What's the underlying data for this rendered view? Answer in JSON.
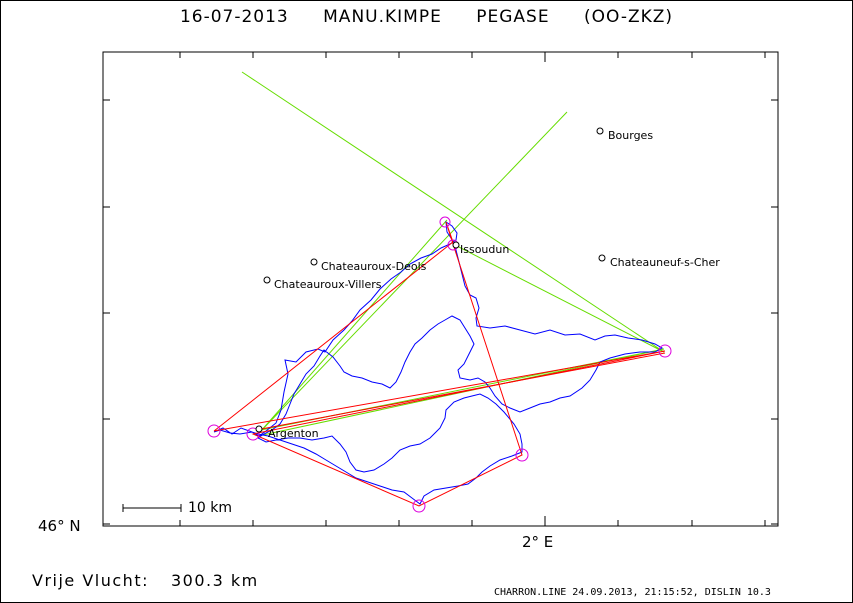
{
  "header": {
    "date": "16-07-2013",
    "pilot": "MANU.KIMPE",
    "glider": "PEGASE (OO-ZKZ)"
  },
  "axes": {
    "lat_label": "46° N",
    "lon_label": "2° E"
  },
  "scale": {
    "label": "10 km"
  },
  "places": [
    {
      "name": "Bourges"
    },
    {
      "name": "Issoudun"
    },
    {
      "name": "Chateauroux-Deols"
    },
    {
      "name": "Chateauroux-Villers"
    },
    {
      "name": "Chateauneuf-s-Cher"
    },
    {
      "name": "Argenton"
    }
  ],
  "summary": {
    "label": "Vrije Vlucht:",
    "distance": "300.3 km"
  },
  "footer": {
    "text": "CHARRON.LINE 24.09.2013, 21:15:52, DISLIN 10.3"
  },
  "colors": {
    "track": "#0000ff",
    "task": "#ff0000",
    "start_finish": "#66dd00",
    "turnpoint": "#dd00dd",
    "frame": "#000000"
  }
}
